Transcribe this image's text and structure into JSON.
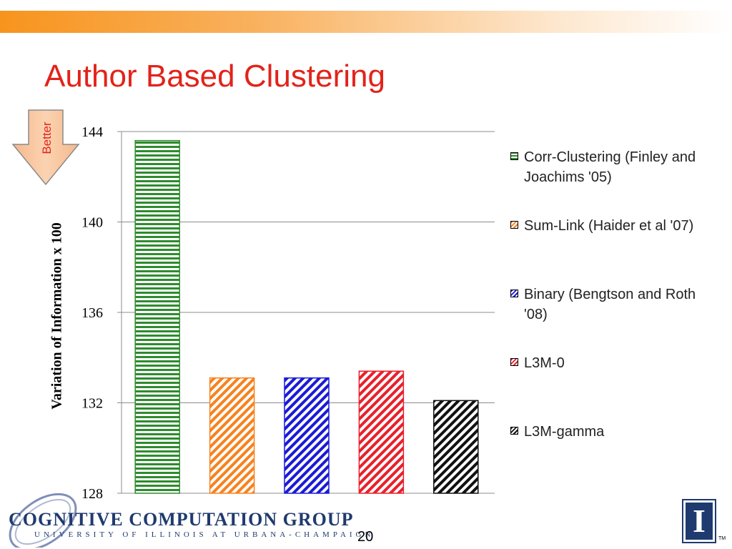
{
  "slide": {
    "title": "Author Based Clustering",
    "page_number": "20",
    "better_label": "Better"
  },
  "chart_data": {
    "type": "bar",
    "categories": [
      "Corr-Clustering (Finley and Joachims '05)",
      "Sum-Link (Haider et al '07)",
      "Binary (Bengtson and Roth '08)",
      "L3M-0",
      "L3M-gamma"
    ],
    "values": [
      143.6,
      133.1,
      133.1,
      133.4,
      132.1
    ],
    "colors": [
      "#2e8b2e",
      "#f7821e",
      "#1a1ad8",
      "#e8202a",
      "#111111"
    ],
    "patterns": [
      "horizontal-stripes",
      "diagonal-stripes",
      "diagonal-stripes",
      "diagonal-stripes",
      "diagonal-stripes"
    ],
    "ylabel": "Variation of Information x 100",
    "xlabel": "",
    "ylim": [
      128,
      144
    ],
    "yticks": [
      128,
      132,
      136,
      140,
      144
    ],
    "grid": true,
    "legend_position": "right"
  },
  "footer": {
    "logo_text": "COGNITIVE COMPUTATION GROUP",
    "logo_subtext": "UNIVERSITY OF ILLINOIS AT URBANA-CHAMPAIGN",
    "university_mark": "I",
    "trademark": "TM"
  }
}
